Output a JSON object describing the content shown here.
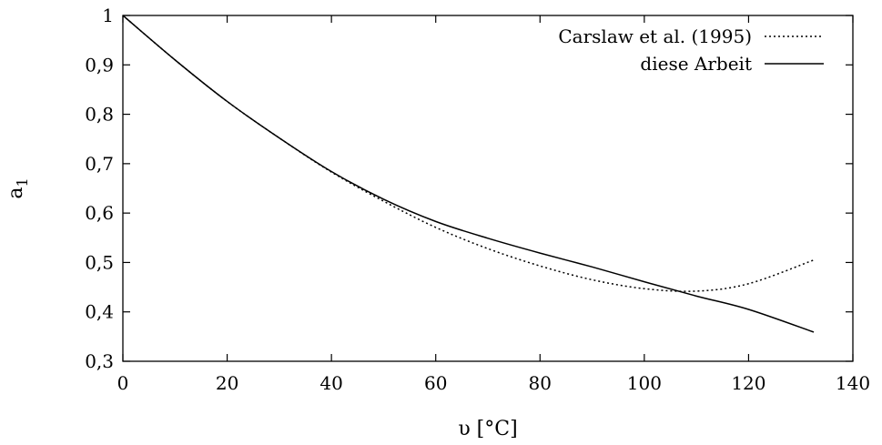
{
  "chart_data": {
    "type": "line",
    "xlabel": "υ [°C]",
    "ylabel": "a",
    "ylabel_subscript": "1",
    "xlim": [
      0,
      140
    ],
    "ylim": [
      0.3,
      1.0
    ],
    "xticks": [
      0,
      20,
      40,
      60,
      80,
      100,
      120,
      140
    ],
    "yticks": [
      0.3,
      0.4,
      0.5,
      0.6,
      0.7,
      0.8,
      0.9,
      1.0
    ],
    "xtick_labels": [
      "0",
      "20",
      "40",
      "60",
      "80",
      "100",
      "120",
      "140"
    ],
    "ytick_labels": [
      "0,3",
      "0,4",
      "0,5",
      "0,6",
      "0,7",
      "0,8",
      "0,9",
      "1"
    ],
    "grid": false,
    "legend_position": "top-right",
    "series": [
      {
        "name": "Carslaw et al. (1995)",
        "style": "dotted",
        "color": "#000000",
        "x": [
          0,
          10,
          20,
          30,
          40,
          50,
          60,
          70,
          80,
          90,
          100,
          110,
          120,
          132.5
        ],
        "y": [
          1.0,
          0.91,
          0.826,
          0.752,
          0.683,
          0.624,
          0.571,
          0.528,
          0.493,
          0.465,
          0.447,
          0.442,
          0.457,
          0.505
        ]
      },
      {
        "name": "diese Arbeit",
        "style": "solid",
        "color": "#000000",
        "x": [
          0,
          10,
          20,
          30,
          40,
          50,
          60,
          70,
          80,
          90,
          100,
          110,
          120,
          132.5
        ],
        "y": [
          1.0,
          0.91,
          0.826,
          0.752,
          0.684,
          0.628,
          0.583,
          0.549,
          0.519,
          0.491,
          0.461,
          0.432,
          0.405,
          0.359
        ]
      }
    ]
  }
}
